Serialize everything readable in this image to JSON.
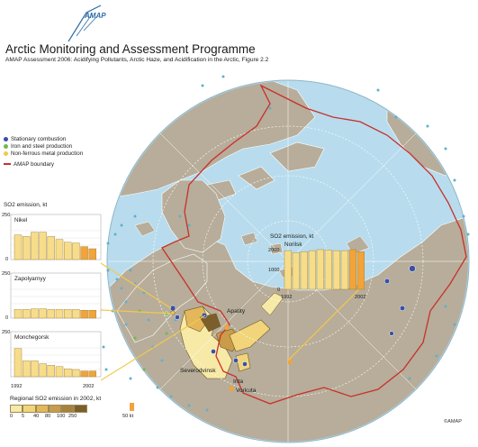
{
  "header": {
    "logo_text": "AMAP",
    "title": "Arctic Monitoring and Assessment Programme",
    "subtitle": "AMAP Assessment 2006: Acidifying Pollutants, Arctic Haze, and Acidification in the Arctic, Figure 2.2"
  },
  "legend": {
    "items": [
      {
        "label": "Stationary combustion",
        "color": "#3b4fa3"
      },
      {
        "label": "Iron and steel production",
        "color": "#6fb94e"
      },
      {
        "label": "Non-ferrous metal production",
        "color": "#f2c94c"
      }
    ],
    "boundary_label": "AMAP boundary",
    "boundary_color": "#c8302b"
  },
  "panel_title": "SO2 emission, kt",
  "charts": [
    {
      "site": "Nikel",
      "ymax": 250,
      "ytick_top": "250",
      "ytick_bottom": "0",
      "values": [
        170,
        160,
        190,
        190,
        160,
        140,
        120,
        115,
        90,
        75
      ],
      "highlight": [
        8,
        9
      ]
    },
    {
      "site": "Zapolyarnyy",
      "ymax": 250,
      "ytick_top": "250",
      "ytick_bottom": "0",
      "values": [
        60,
        60,
        65,
        65,
        60,
        60,
        60,
        60,
        55,
        55
      ],
      "highlight": [
        8,
        9
      ]
    },
    {
      "site": "Monchegorsk",
      "ymax": 250,
      "ytick_top": "250",
      "ytick_bottom": "",
      "values": [
        195,
        110,
        110,
        90,
        80,
        70,
        55,
        50,
        40,
        40
      ],
      "highlight": [
        8,
        9
      ]
    }
  ],
  "chart_axis": {
    "start": "1992",
    "end": "2002"
  },
  "norilsk_chart": {
    "title": "SO2 emission, kt",
    "site": "Norilsk",
    "ymax": 2000,
    "ytick_top": "2000",
    "ytick_mid": "1000",
    "ytick_bottom": "0",
    "values": [
      1950,
      1850,
      1900,
      1950,
      2000,
      1980,
      1950,
      1950,
      2000,
      1900
    ],
    "highlight": [
      8,
      9
    ],
    "axis_start": "1992",
    "axis_end": "2002"
  },
  "cities": [
    {
      "name": "Apatity"
    },
    {
      "name": "Severodvinsk"
    },
    {
      "name": "Inta"
    },
    {
      "name": "Vorkuta"
    }
  ],
  "regional_legend": {
    "title": "Regional SO2 emission in 2002, kt",
    "classes": [
      "0",
      "5",
      "40",
      "80",
      "100",
      "250"
    ],
    "colors": [
      "#f7e9a6",
      "#f2d57a",
      "#e4b75a",
      "#c99b4a",
      "#a9813c",
      "#7c5e2a"
    ],
    "marker_label": "50 kt",
    "marker_color": "#f0a43a"
  },
  "copyright": "©AMAP",
  "colors": {
    "ocean": "#b8dced",
    "land": "#b7ad9a",
    "land_outline": "#ffffff",
    "graticule": "#ffffff",
    "bar": "#f7dd8a",
    "bar_highlight": "#f0a43a",
    "bar_stroke": "#9a7b32"
  }
}
